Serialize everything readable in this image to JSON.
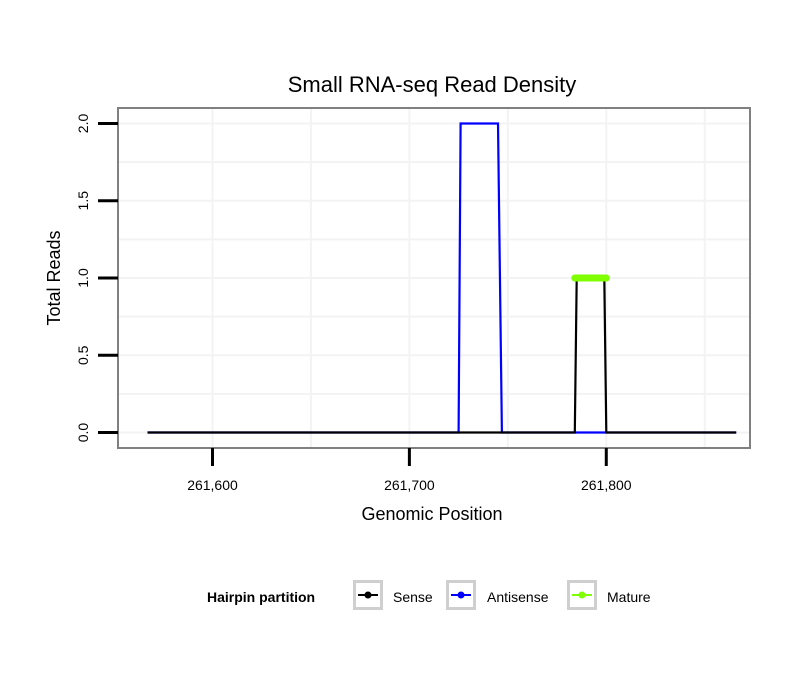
{
  "chart_data": {
    "type": "line",
    "title": "Small RNA-seq Read Density",
    "xlabel": "Genomic Position",
    "ylabel": "Total Reads",
    "xlim": [
      261552,
      261873
    ],
    "ylim": [
      -0.1,
      2.1
    ],
    "xticks": [
      261600,
      261700,
      261800
    ],
    "xtick_labels": [
      "261,600",
      "261,700",
      "261,800"
    ],
    "yticks": [
      0,
      0.5,
      1,
      1.5,
      2
    ],
    "ytick_labels": [
      "0.0",
      "0.5",
      "1.0",
      "1.5",
      "2.0"
    ],
    "grid": true,
    "legend_position": "bottom",
    "series": [
      {
        "name": "Sense",
        "color": "#000000",
        "x": [
          261567,
          261784,
          261785,
          261799,
          261800,
          261866
        ],
        "y": [
          0,
          0,
          1,
          1,
          0,
          0
        ]
      },
      {
        "name": "Antisense",
        "color": "#0000ff",
        "x": [
          261567,
          261725,
          261726,
          261745,
          261747,
          261866
        ],
        "y": [
          0,
          0,
          2,
          2,
          0,
          0
        ]
      },
      {
        "name": "Mature",
        "color": "#7fff00",
        "x": [
          261784,
          261800
        ],
        "y": [
          1,
          1
        ]
      }
    ]
  },
  "legend": {
    "title": "Hairpin partition",
    "items": [
      {
        "label": "Sense",
        "color": "#000000"
      },
      {
        "label": "Antisense",
        "color": "#0000ff"
      },
      {
        "label": "Mature",
        "color": "#7fff00"
      }
    ]
  }
}
